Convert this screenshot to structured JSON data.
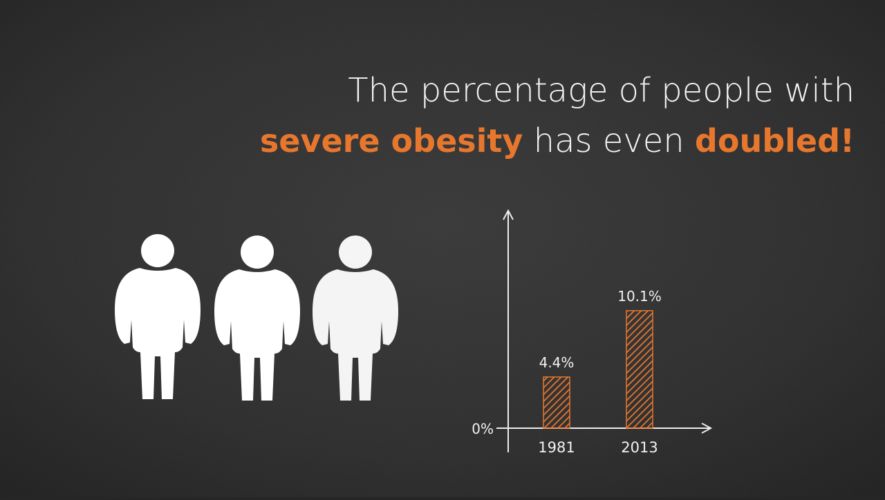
{
  "chart_data": {
    "type": "bar",
    "title_lines": [
      [
        {
          "text": "The percentage of people with",
          "highlight": false
        }
      ],
      [
        {
          "text": "severe obesity",
          "highlight": true
        },
        {
          "text": "has even",
          "highlight": false
        },
        {
          "text": "doubled!",
          "highlight": true
        }
      ]
    ],
    "categories": [
      "1981",
      "2013"
    ],
    "values": [
      4.4,
      10.1
    ],
    "value_labels": [
      "4.4%",
      "10.1%"
    ],
    "color": "#e8772e",
    "ylim": [
      0,
      18.7
    ],
    "yticks": [
      {
        "value": 0,
        "label": "0%"
      }
    ]
  }
}
